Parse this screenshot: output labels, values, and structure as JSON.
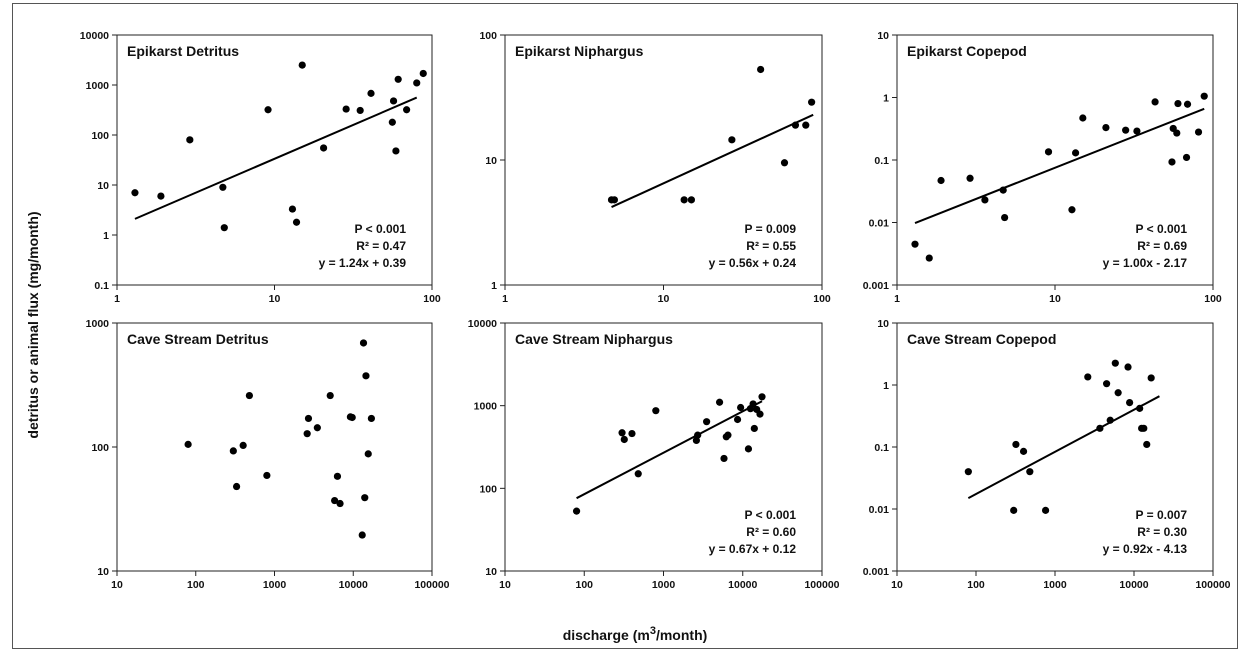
{
  "figure": {
    "xlabel": "discharge (m³/month)",
    "xlabel_base": "discharge (m",
    "xlabel_sup": "3",
    "xlabel_tail": "/month)",
    "ylabel": "detritus or animal flux (mg/month)"
  },
  "chart_data": [
    {
      "type": "scatter",
      "title": "Epikarst Detritus",
      "xscale": "log",
      "yscale": "log",
      "xlim": [
        1,
        100
      ],
      "ylim": [
        0.1,
        10000
      ],
      "xticks": [
        "1",
        "10",
        "100"
      ],
      "yticks": [
        "0.1",
        "1",
        "10",
        "100",
        "1000",
        "10000"
      ],
      "x": [
        1.3,
        1.9,
        2.9,
        4.7,
        4.8,
        9.1,
        13,
        13.8,
        15,
        20.5,
        28.5,
        35,
        41,
        56,
        57,
        59,
        61,
        69,
        80,
        88
      ],
      "y": [
        7,
        6,
        80,
        9,
        1.4,
        320,
        3.3,
        1.8,
        2500,
        55,
        330,
        310,
        680,
        180,
        480,
        48,
        1300,
        320,
        1100,
        1700
      ],
      "trend": {
        "x0": 1.3,
        "x1": 80,
        "y0": 2.1,
        "y1": 560
      },
      "stats": [
        "P < 0.001",
        "R² = 0.47",
        "y = 1.24x + 0.39"
      ]
    },
    {
      "type": "scatter",
      "title": "Epikarst Niphargus",
      "xscale": "log",
      "yscale": "log",
      "xlim": [
        1,
        100
      ],
      "ylim": [
        1,
        100
      ],
      "xticks": [
        "1",
        "10",
        "100"
      ],
      "yticks": [
        "1",
        "10",
        "100"
      ],
      "x": [
        4.7,
        4.9,
        13.5,
        15,
        27,
        41,
        58,
        68,
        79,
        86
      ],
      "y": [
        4.8,
        4.8,
        4.8,
        4.8,
        14.5,
        53,
        9.5,
        19,
        19,
        29
      ],
      "trend": {
        "x0": 4.7,
        "x1": 88,
        "y0": 4.2,
        "y1": 23
      },
      "stats": [
        "P = 0.009",
        "R² = 0.55",
        "y = 0.56x + 0.24"
      ]
    },
    {
      "type": "scatter",
      "title": "Epikarst Copepod",
      "xscale": "log",
      "yscale": "log",
      "xlim": [
        1,
        100
      ],
      "ylim": [
        0.001,
        10
      ],
      "xticks": [
        "1",
        "10",
        "100"
      ],
      "yticks": [
        "0.001",
        "0.01",
        "0.1",
        "1",
        "10"
      ],
      "x": [
        1.3,
        1.6,
        1.9,
        2.9,
        3.6,
        4.7,
        4.8,
        9.1,
        12.8,
        13.5,
        15,
        21,
        28,
        33,
        43,
        55,
        56,
        59,
        60,
        68,
        69,
        81,
        88
      ],
      "y": [
        0.0045,
        0.0027,
        0.047,
        0.051,
        0.023,
        0.033,
        0.012,
        0.135,
        0.016,
        0.13,
        0.47,
        0.33,
        0.3,
        0.29,
        0.85,
        0.093,
        0.32,
        0.27,
        0.8,
        0.11,
        0.78,
        0.28,
        1.05
      ],
      "trend": {
        "x0": 1.3,
        "x1": 88,
        "y0": 0.0098,
        "y1": 0.66
      },
      "stats": [
        "P < 0.001",
        "R² = 0.69",
        "y = 1.00x - 2.17"
      ]
    },
    {
      "type": "scatter",
      "title": "Cave Stream Detritus",
      "xscale": "log",
      "yscale": "log",
      "xlim": [
        10,
        100000
      ],
      "ylim": [
        10,
        1000
      ],
      "xticks": [
        "10",
        "100",
        "1000",
        "10000",
        "100000"
      ],
      "yticks": [
        "10",
        "100",
        "1000"
      ],
      "x": [
        80,
        300,
        330,
        400,
        480,
        800,
        2600,
        2700,
        3500,
        5100,
        5800,
        6300,
        6800,
        9200,
        9700,
        13000,
        13500,
        14000,
        14500,
        15500,
        17000
      ],
      "y": [
        105,
        93,
        48,
        103,
        260,
        59,
        128,
        170,
        143,
        260,
        37,
        58,
        35,
        175,
        173,
        19.5,
        690,
        39,
        375,
        88,
        170
      ],
      "stats": []
    },
    {
      "type": "scatter",
      "title": "Cave Stream Niphargus",
      "xscale": "log",
      "yscale": "log",
      "xlim": [
        10,
        100000
      ],
      "ylim": [
        10,
        10000
      ],
      "xticks": [
        "10",
        "100",
        "1000",
        "10000",
        "100000"
      ],
      "yticks": [
        "10",
        "100",
        "1000",
        "10000"
      ],
      "x": [
        80,
        300,
        320,
        400,
        480,
        800,
        2600,
        2700,
        3500,
        5100,
        5800,
        6200,
        6500,
        8600,
        9400,
        11800,
        12500,
        13500,
        14000,
        15000,
        16500,
        17500
      ],
      "y": [
        53,
        470,
        390,
        460,
        150,
        870,
        380,
        440,
        640,
        1100,
        230,
        420,
        440,
        680,
        950,
        300,
        920,
        1050,
        530,
        900,
        790,
        1280
      ],
      "trend": {
        "x0": 80,
        "x1": 17500,
        "y0": 76,
        "y1": 1130
      },
      "stats": [
        "P < 0.001",
        "R² = 0.60",
        "y = 0.67x + 0.12"
      ]
    },
    {
      "type": "scatter",
      "title": "Cave Stream Copepod",
      "xscale": "log",
      "yscale": "log",
      "xlim": [
        10,
        100000
      ],
      "ylim": [
        0.001,
        10
      ],
      "xticks": [
        "10",
        "100",
        "1000",
        "10000",
        "100000"
      ],
      "yticks": [
        "0.001",
        "0.01",
        "0.1",
        "1",
        "10"
      ],
      "x": [
        80,
        300,
        320,
        400,
        480,
        760,
        2600,
        3700,
        4500,
        5000,
        5800,
        6300,
        8400,
        8800,
        11800,
        12500,
        13300,
        14500,
        16500
      ],
      "y": [
        0.04,
        0.0095,
        0.11,
        0.085,
        0.04,
        0.0095,
        1.35,
        0.2,
        1.05,
        0.27,
        2.25,
        0.75,
        1.95,
        0.52,
        0.42,
        0.2,
        0.2,
        0.11,
        1.3
      ],
      "trend": {
        "x0": 80,
        "x1": 21000,
        "y0": 0.015,
        "y1": 0.66
      },
      "stats": [
        "P = 0.007",
        "R² = 0.30",
        "y = 0.92x - 4.13"
      ]
    }
  ]
}
